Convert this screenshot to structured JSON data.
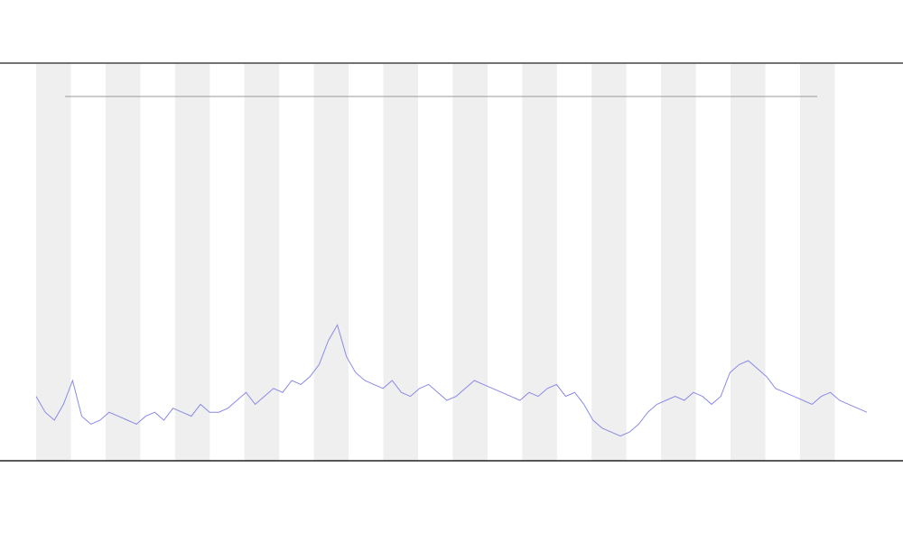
{
  "chart_data": {
    "type": "line",
    "ylim": [
      0,
      100
    ],
    "series": [
      {
        "color": "#8a8ae8",
        "values": [
          16,
          12,
          10,
          14,
          20,
          11,
          9,
          10,
          12,
          11,
          10,
          9,
          11,
          12,
          10,
          13,
          12,
          11,
          14,
          12,
          12,
          13,
          15,
          17,
          14,
          16,
          18,
          17,
          20,
          19,
          21,
          24,
          30,
          34,
          26,
          22,
          20,
          19,
          18,
          20,
          17,
          16,
          18,
          19,
          17,
          15,
          16,
          18,
          20,
          19,
          18,
          17,
          16,
          15,
          17,
          16,
          18,
          19,
          16,
          17,
          14,
          10,
          8,
          7,
          6,
          7,
          9,
          12,
          14,
          15,
          16,
          15,
          17,
          16,
          14,
          16,
          22,
          24,
          25,
          23,
          21,
          18,
          17,
          16,
          15,
          14,
          16,
          17,
          15,
          14,
          13,
          12
        ]
      }
    ]
  }
}
